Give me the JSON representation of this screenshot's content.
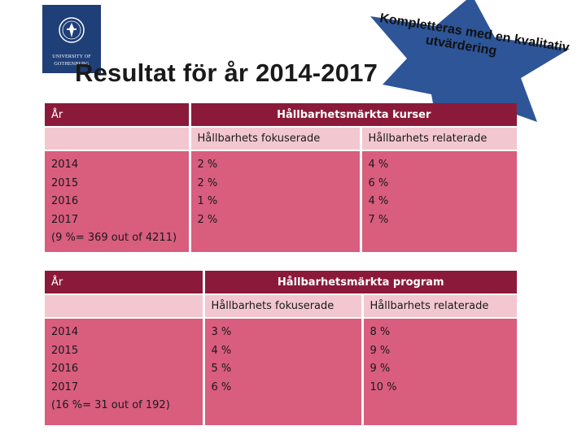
{
  "logo": {
    "line1": "UNIVERSITY OF",
    "line2": "GOTHENBURG",
    "emblem": "university-seal-icon"
  },
  "title": "Resultat för år 2014-2017",
  "starburst": {
    "line1": "Kompletteras med en kvalitativ",
    "line2": "utvärdering",
    "color": "#2d5597"
  },
  "colors": {
    "header": "#8b1a3a",
    "subheader": "#f3c7d0",
    "body": "#d95d7d"
  },
  "courses": {
    "col_year": "År",
    "group_header": "Hållbarhetsmärkta kurser",
    "sub_focused": "Hållbarhets fokuserade",
    "sub_related": "Hållbarhets relaterade",
    "years": [
      "2014",
      "2015",
      "2016",
      "2017",
      "(9 %= 369 out of 4211)"
    ],
    "focused": [
      "2 %",
      "2 %",
      "1 %",
      "2 %"
    ],
    "related": [
      "4 %",
      "6 %",
      "4 %",
      "7 %"
    ]
  },
  "programs": {
    "col_year": "År",
    "group_header": "Hållbarhetsmärkta program",
    "sub_focused": "Hållbarhets fokuserade",
    "sub_related": "Hållbarhets relaterade",
    "years": [
      "2014",
      "2015",
      "2016",
      "2017",
      "(16 %= 31 out of 192)"
    ],
    "focused": [
      "3 %",
      "4 %",
      "5 %",
      "6 %"
    ],
    "related": [
      "8 %",
      "9 %",
      "9 %",
      "10 %"
    ]
  }
}
